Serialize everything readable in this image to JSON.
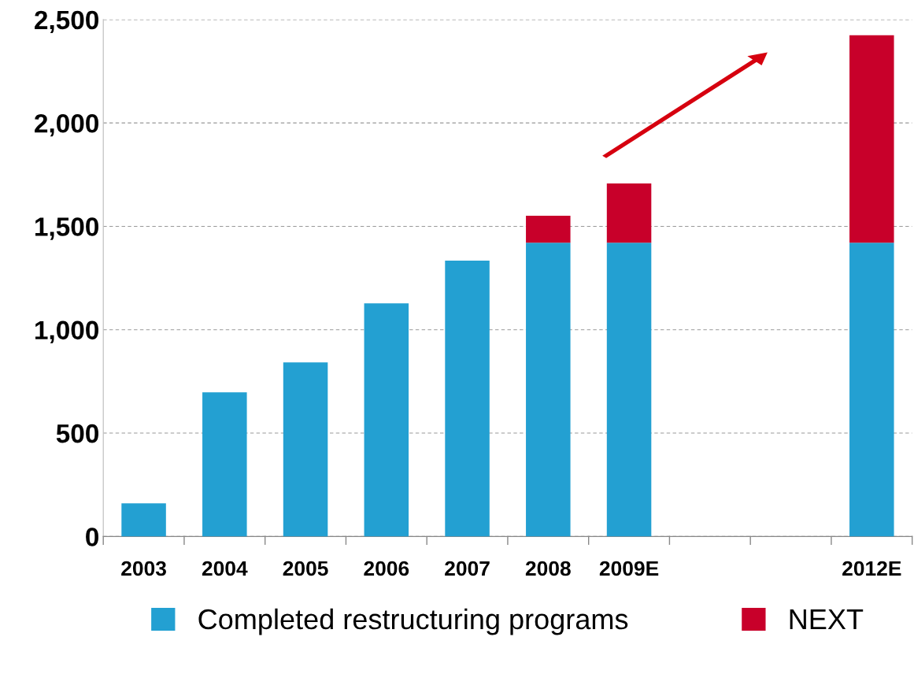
{
  "chart_data": {
    "type": "bar",
    "stacked": true,
    "categories": [
      "2003",
      "2004",
      "2005",
      "2006",
      "2007",
      "2008",
      "2009E",
      null,
      null,
      "2012E"
    ],
    "series": [
      {
        "name": "Completed restructuring programs",
        "color": "#23a0d2",
        "values": [
          160,
          697,
          842,
          1128,
          1334,
          1421,
          1421,
          null,
          null,
          1421
        ]
      },
      {
        "name": "NEXT",
        "color": "#c8002a",
        "values": [
          null,
          null,
          null,
          null,
          null,
          130,
          286,
          null,
          null,
          1003
        ]
      }
    ],
    "ylim": [
      0,
      2500
    ],
    "yticks": [
      0,
      {
        "value": 500,
        "label": "500"
      },
      {
        "value": 1000,
        "label": "1,000"
      },
      {
        "value": 1500,
        "label": "1,500"
      },
      {
        "value": 2000,
        "label": "2,000"
      },
      {
        "value": 2500,
        "label": "2,500"
      }
    ],
    "grid": "y",
    "legend": "bottom"
  }
}
